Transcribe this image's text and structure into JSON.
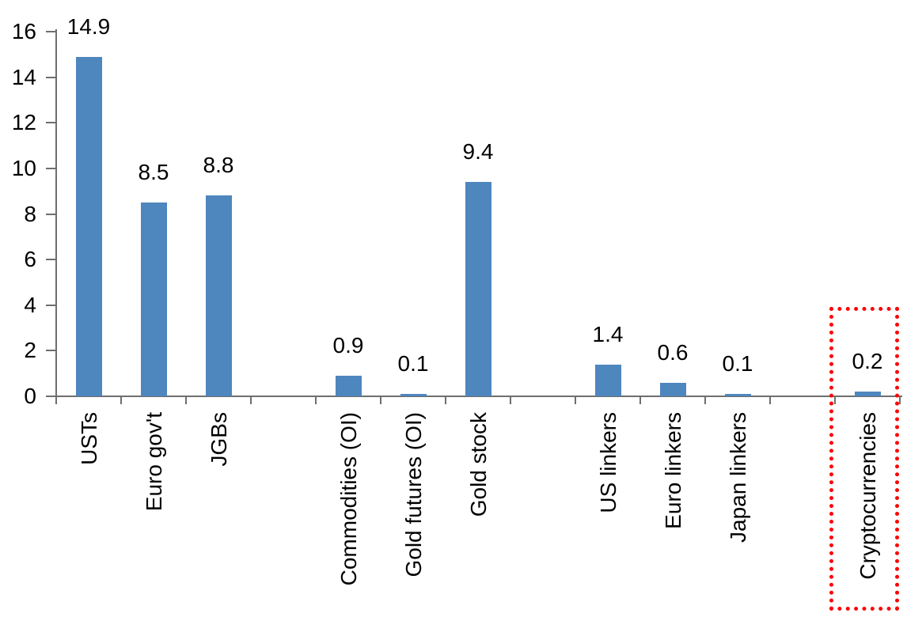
{
  "chart_data": {
    "type": "bar",
    "title": "",
    "xlabel": "",
    "ylabel": "",
    "categories": [
      "USTs",
      "Euro gov't",
      "JGBs",
      "Commodities (OI)",
      "Gold futures (OI)",
      "Gold stock",
      "US linkers",
      "Euro linkers",
      "Japan linkers",
      "Cryptocurrencies"
    ],
    "values": [
      14.9,
      8.5,
      8.8,
      0.9,
      0.1,
      9.4,
      1.4,
      0.6,
      0.1,
      0.2
    ],
    "data_labels": [
      "14.9",
      "8.5",
      "8.8",
      "0.9",
      "0.1",
      "9.4",
      "1.4",
      "0.6",
      "0.1",
      "0.2"
    ],
    "gap_after_indices": [
      2,
      5,
      8
    ],
    "y_ticks": [
      "0",
      "2",
      "4",
      "6",
      "8",
      "10",
      "12",
      "14",
      "16"
    ],
    "ylim": [
      0,
      16
    ],
    "grid": false,
    "legend": null,
    "label_rotation_degrees": 90,
    "bar_color": "#4E86BE",
    "axis_color": "#6E6E6E",
    "text_color": "#000000",
    "highlight": {
      "category": "Cryptocurrencies",
      "style": "dotted-box",
      "color": "#FF0000"
    }
  }
}
